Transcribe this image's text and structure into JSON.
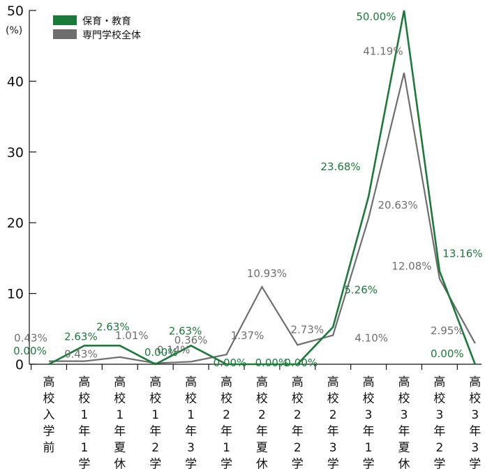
{
  "chart_data": {
    "type": "line",
    "ylim": [
      0,
      50
    ],
    "yticks": [
      0,
      10,
      20,
      30,
      40,
      50
    ],
    "yunit": "(%)",
    "categories": [
      "高校入学前",
      "高校1年1学期",
      "高校1年夏休み",
      "高校1年2学期",
      "高校1年3学期",
      "高校2年1学期",
      "高校2年夏休み",
      "高校2年2学期",
      "高校2年3学期",
      "高校3年1学期",
      "高校3年夏休み",
      "高校3年2学期",
      "高校3年3学期"
    ],
    "series": [
      {
        "name": "保育・教育",
        "color": "#1a7a3a",
        "values": [
          0.0,
          2.63,
          2.63,
          0.0,
          2.63,
          0.0,
          0.0,
          0.0,
          5.26,
          23.68,
          50.0,
          13.16,
          0.0
        ],
        "labels": [
          "0.00%",
          "2.63%",
          "2.63%",
          "0.00%",
          "2.63%",
          "0.00%",
          "0.00%",
          "0.00%",
          "5.26%",
          "23.68%",
          "50.00%",
          "13.16%",
          "0.00%"
        ]
      },
      {
        "name": "専門学校全体",
        "color": "#6e6e6e",
        "values": [
          0.43,
          0.43,
          1.01,
          0.14,
          0.36,
          1.37,
          10.93,
          2.73,
          4.1,
          20.63,
          41.19,
          12.08,
          2.95
        ],
        "labels": [
          "0.43%",
          "0.43%",
          "1.01%",
          "0.14%",
          "0.36%",
          "1.37%",
          "10.93%",
          "2.73%",
          "4.10%",
          "20.63%",
          "41.19%",
          "12.08%",
          "2.95%"
        ]
      }
    ]
  }
}
